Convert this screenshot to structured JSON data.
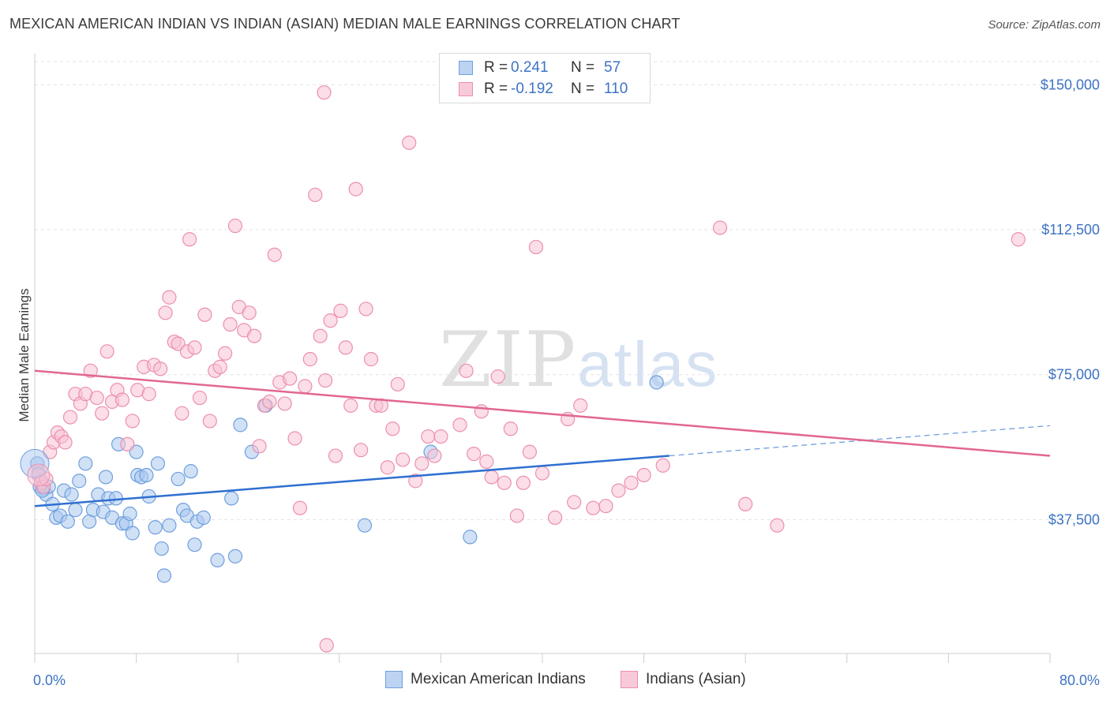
{
  "title": "MEXICAN AMERICAN INDIAN VS INDIAN (ASIAN) MEDIAN MALE EARNINGS CORRELATION CHART",
  "source": "Source: ZipAtlas.com",
  "watermark": {
    "zip": "ZIP",
    "atlas": "atlas"
  },
  "legend": {
    "r_label": "R =",
    "n_label": "N =",
    "rows": [
      {
        "r": "0.241",
        "n": "57",
        "color": "#a9c8ef",
        "border": "#6f9fde"
      },
      {
        "r": "-0.192",
        "n": "110",
        "color": "#f7c2d3",
        "border": "#ec8fae"
      }
    ]
  },
  "bottom_legend": [
    {
      "label": "Mexican American Indians",
      "color": "#bcd4f2",
      "border": "#6f9fde"
    },
    {
      "label": "Indians (Asian)",
      "color": "#f8cad9",
      "border": "#ec8fae"
    }
  ],
  "chart_data": {
    "type": "scatter",
    "xlabel": "",
    "ylabel": "Median Male Earnings",
    "xlim": [
      0,
      80
    ],
    "ylim": [
      0,
      156000
    ],
    "x_tick_labels": [
      "0.0%",
      "80.0%"
    ],
    "y_ticks": [
      37500,
      75000,
      112500,
      150000
    ],
    "y_tick_labels": [
      "$37,500",
      "$75,000",
      "$112,500",
      "$150,000"
    ],
    "grid": true,
    "series": [
      {
        "name": "Mexican American Indians",
        "color": "#6f9fde",
        "fill": "#a9c8ef",
        "trend": {
          "x0": 0,
          "y0": 41000,
          "x1": 50,
          "y1": 54000,
          "x_dash_end": 80,
          "y_dash_end": 61800
        },
        "points": [
          [
            0.2,
            52000
          ],
          [
            0.3,
            49500
          ],
          [
            0.5,
            47500
          ],
          [
            0.7,
            45500
          ],
          [
            0.9,
            44000
          ],
          [
            1.1,
            46000
          ],
          [
            1.4,
            41500
          ],
          [
            1.7,
            38000
          ],
          [
            2.0,
            38500
          ],
          [
            2.3,
            45000
          ],
          [
            2.6,
            37000
          ],
          [
            2.9,
            44000
          ],
          [
            3.2,
            40000
          ],
          [
            3.5,
            47500
          ],
          [
            4.0,
            52000
          ],
          [
            4.3,
            37000
          ],
          [
            4.6,
            40000
          ],
          [
            5.0,
            44000
          ],
          [
            5.4,
            39500
          ],
          [
            5.6,
            48500
          ],
          [
            5.8,
            43000
          ],
          [
            6.1,
            38000
          ],
          [
            6.4,
            43000
          ],
          [
            6.6,
            57000
          ],
          [
            6.9,
            36500
          ],
          [
            7.2,
            36500
          ],
          [
            7.5,
            39000
          ],
          [
            7.7,
            34000
          ],
          [
            8.0,
            55000
          ],
          [
            8.1,
            49000
          ],
          [
            8.4,
            48500
          ],
          [
            8.8,
            49000
          ],
          [
            9.0,
            43500
          ],
          [
            9.5,
            35500
          ],
          [
            9.7,
            52000
          ],
          [
            10.0,
            30000
          ],
          [
            10.2,
            23000
          ],
          [
            10.6,
            36000
          ],
          [
            11.3,
            48000
          ],
          [
            11.7,
            40000
          ],
          [
            12.0,
            38500
          ],
          [
            12.3,
            50000
          ],
          [
            12.6,
            31000
          ],
          [
            12.8,
            37000
          ],
          [
            13.3,
            38000
          ],
          [
            14.4,
            27000
          ],
          [
            15.5,
            43000
          ],
          [
            15.8,
            28000
          ],
          [
            16.2,
            62000
          ],
          [
            17.1,
            55000
          ],
          [
            18.2,
            67000
          ],
          [
            26.0,
            36000
          ],
          [
            31.2,
            55000
          ],
          [
            34.3,
            33000
          ],
          [
            49.0,
            73000
          ],
          [
            0.4,
            46000
          ],
          [
            0.6,
            45000
          ]
        ]
      },
      {
        "name": "Indians (Asian)",
        "color": "#ec8fae",
        "fill": "#f7c2d3",
        "trend": {
          "x0": 0,
          "y0": 76000,
          "x1": 80,
          "y1": 54000
        },
        "points": [
          [
            0.3,
            49000
          ],
          [
            0.5,
            47000
          ],
          [
            0.7,
            46000
          ],
          [
            0.9,
            48000
          ],
          [
            1.2,
            55000
          ],
          [
            1.5,
            57500
          ],
          [
            1.8,
            60000
          ],
          [
            2.1,
            59000
          ],
          [
            2.4,
            57500
          ],
          [
            2.8,
            64000
          ],
          [
            3.2,
            70000
          ],
          [
            3.6,
            67500
          ],
          [
            4.0,
            70000
          ],
          [
            4.4,
            76000
          ],
          [
            4.9,
            69000
          ],
          [
            5.3,
            65000
          ],
          [
            5.7,
            81000
          ],
          [
            6.1,
            68000
          ],
          [
            6.5,
            71000
          ],
          [
            6.9,
            68500
          ],
          [
            7.3,
            57000
          ],
          [
            7.7,
            63000
          ],
          [
            8.1,
            71000
          ],
          [
            8.6,
            77000
          ],
          [
            9.0,
            70000
          ],
          [
            9.4,
            77500
          ],
          [
            9.9,
            76500
          ],
          [
            10.3,
            91000
          ],
          [
            10.6,
            95000
          ],
          [
            11.0,
            83500
          ],
          [
            11.3,
            83000
          ],
          [
            11.6,
            65000
          ],
          [
            12.0,
            81000
          ],
          [
            12.2,
            110000
          ],
          [
            12.6,
            82000
          ],
          [
            13.0,
            69000
          ],
          [
            13.4,
            90500
          ],
          [
            13.8,
            63000
          ],
          [
            14.2,
            76000
          ],
          [
            14.6,
            77000
          ],
          [
            15.0,
            80500
          ],
          [
            15.4,
            88000
          ],
          [
            15.8,
            113500
          ],
          [
            16.1,
            92500
          ],
          [
            16.5,
            86500
          ],
          [
            16.9,
            91000
          ],
          [
            17.3,
            85000
          ],
          [
            17.7,
            56500
          ],
          [
            18.1,
            67000
          ],
          [
            18.5,
            68000
          ],
          [
            18.9,
            106000
          ],
          [
            19.3,
            73000
          ],
          [
            19.7,
            67500
          ],
          [
            20.1,
            74000
          ],
          [
            20.5,
            58500
          ],
          [
            20.9,
            40500
          ],
          [
            21.3,
            72000
          ],
          [
            21.7,
            79000
          ],
          [
            22.1,
            121500
          ],
          [
            22.5,
            85000
          ],
          [
            22.9,
            73500
          ],
          [
            23.3,
            89000
          ],
          [
            23.7,
            54000
          ],
          [
            24.1,
            91500
          ],
          [
            24.5,
            82000
          ],
          [
            24.9,
            67000
          ],
          [
            25.3,
            123000
          ],
          [
            25.7,
            55500
          ],
          [
            26.1,
            92000
          ],
          [
            26.5,
            79000
          ],
          [
            26.9,
            67000
          ],
          [
            27.3,
            67000
          ],
          [
            27.8,
            51000
          ],
          [
            28.2,
            61000
          ],
          [
            28.6,
            72500
          ],
          [
            29.0,
            53000
          ],
          [
            29.5,
            135000
          ],
          [
            30.0,
            47500
          ],
          [
            30.5,
            52000
          ],
          [
            31.0,
            59000
          ],
          [
            31.5,
            54000
          ],
          [
            32.0,
            59000
          ],
          [
            33.5,
            62000
          ],
          [
            34.0,
            76000
          ],
          [
            34.6,
            54500
          ],
          [
            35.2,
            65500
          ],
          [
            35.6,
            52500
          ],
          [
            36.0,
            48500
          ],
          [
            36.5,
            74500
          ],
          [
            37.0,
            47000
          ],
          [
            37.5,
            61000
          ],
          [
            38.0,
            38500
          ],
          [
            38.5,
            47000
          ],
          [
            39.0,
            55000
          ],
          [
            39.5,
            108000
          ],
          [
            40.0,
            49500
          ],
          [
            41.0,
            38000
          ],
          [
            42.0,
            63500
          ],
          [
            42.5,
            42000
          ],
          [
            43.0,
            67000
          ],
          [
            44.0,
            40500
          ],
          [
            45.0,
            41000
          ],
          [
            46.0,
            45000
          ],
          [
            47.0,
            47000
          ],
          [
            48.0,
            49000
          ],
          [
            49.5,
            51500
          ],
          [
            54.0,
            113000
          ],
          [
            56.0,
            41500
          ],
          [
            58.5,
            36000
          ],
          [
            77.5,
            110000
          ]
        ]
      }
    ],
    "extra_points": [
      {
        "series": 1,
        "x": 22.8,
        "y": 148000
      },
      {
        "series": 1,
        "x": 23.0,
        "y": 5000
      }
    ]
  }
}
